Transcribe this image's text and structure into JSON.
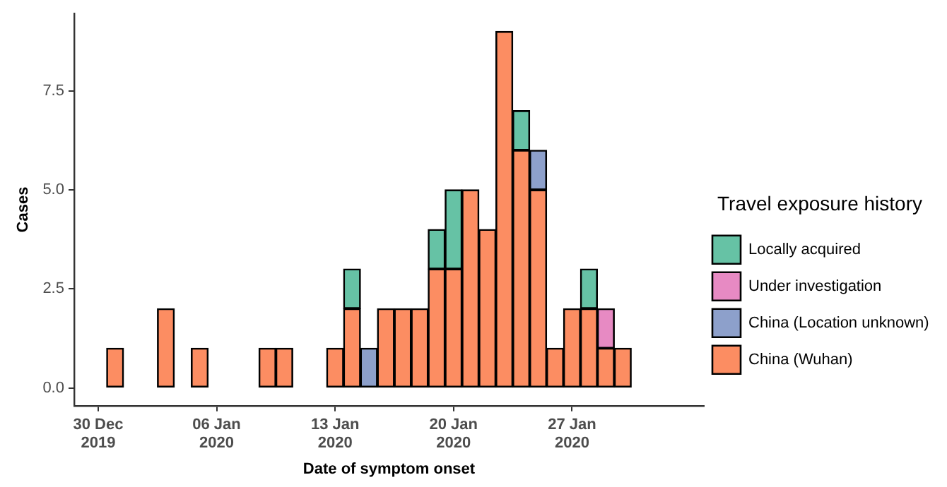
{
  "chart_data": {
    "type": "bar",
    "stacked": true,
    "xlabel": "Date of symptom onset",
    "ylabel": "Cases",
    "legend_title": "Travel exposure history",
    "legend": "right",
    "grid": false,
    "x": [
      "2019-12-31",
      "2020-01-01",
      "2020-01-02",
      "2020-01-03",
      "2020-01-04",
      "2020-01-05",
      "2020-01-06",
      "2020-01-07",
      "2020-01-08",
      "2020-01-09",
      "2020-01-10",
      "2020-01-11",
      "2020-01-12",
      "2020-01-13",
      "2020-01-14",
      "2020-01-15",
      "2020-01-16",
      "2020-01-17",
      "2020-01-18",
      "2020-01-19",
      "2020-01-20",
      "2020-01-21",
      "2020-01-22",
      "2020-01-23",
      "2020-01-24",
      "2020-01-25",
      "2020-01-26",
      "2020-01-27",
      "2020-01-28",
      "2020-01-29",
      "2020-01-30",
      "2020-01-31",
      "2020-02-01"
    ],
    "series": [
      {
        "name": "China (Wuhan)",
        "color": "#fc8d62",
        "values": [
          1,
          0,
          0,
          2,
          0,
          1,
          0,
          0,
          0,
          1,
          1,
          0,
          0,
          1,
          2,
          0,
          2,
          2,
          2,
          3,
          3,
          5,
          4,
          9,
          6,
          5,
          1,
          2,
          2,
          1,
          1,
          0,
          0
        ]
      },
      {
        "name": "China (Location unknown)",
        "color": "#8da0cb",
        "values": [
          0,
          0,
          0,
          0,
          0,
          0,
          0,
          0,
          0,
          0,
          0,
          0,
          0,
          0,
          0,
          1,
          0,
          0,
          0,
          0,
          0,
          0,
          0,
          0,
          0,
          1,
          0,
          0,
          0,
          0,
          0,
          0,
          0
        ]
      },
      {
        "name": "Under investigation",
        "color": "#e78ac3",
        "values": [
          0,
          0,
          0,
          0,
          0,
          0,
          0,
          0,
          0,
          0,
          0,
          0,
          0,
          0,
          0,
          0,
          0,
          0,
          0,
          0,
          0,
          0,
          0,
          0,
          0,
          0,
          0,
          0,
          0,
          1,
          0,
          0,
          0
        ]
      },
      {
        "name": "Locally acquired",
        "color": "#66c2a5",
        "values": [
          0,
          0,
          0,
          0,
          0,
          0,
          0,
          0,
          0,
          0,
          0,
          0,
          0,
          0,
          1,
          0,
          0,
          0,
          0,
          1,
          2,
          0,
          0,
          0,
          1,
          0,
          0,
          0,
          1,
          0,
          0,
          0,
          0
        ]
      }
    ],
    "xlim": [
      "2019-12-28T14:00",
      "2020-02-03T19:00"
    ],
    "xticks": [
      {
        "value": "2019-12-30",
        "label": "30 Dec\n2019"
      },
      {
        "value": "2020-01-06",
        "label": "06 Jan\n2020"
      },
      {
        "value": "2020-01-13",
        "label": "13 Jan\n2020"
      },
      {
        "value": "2020-01-20",
        "label": "20 Jan\n2020"
      },
      {
        "value": "2020-01-27",
        "label": "27 Jan\n2020"
      }
    ],
    "ylim": [
      -0.45,
      9.45
    ],
    "yticks": [
      {
        "value": 0,
        "label": "0.0"
      },
      {
        "value": 2.5,
        "label": "2.5"
      },
      {
        "value": 5,
        "label": "5.0"
      },
      {
        "value": 7.5,
        "label": "7.5"
      }
    ]
  }
}
